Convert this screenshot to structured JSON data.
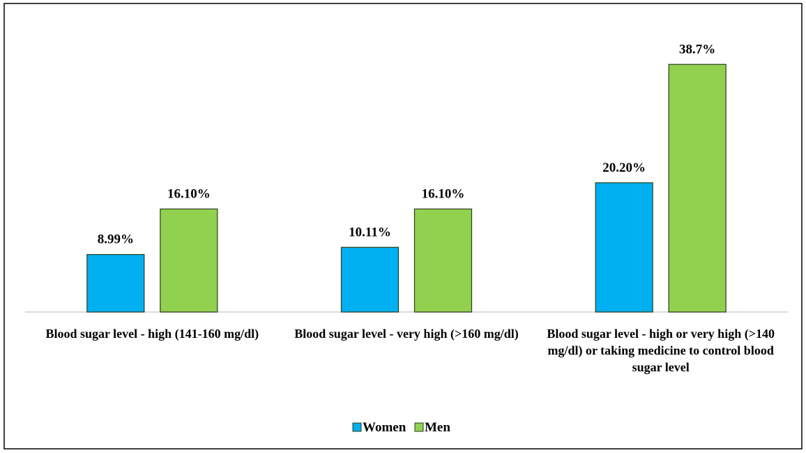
{
  "chart_data": {
    "type": "bar",
    "categories": [
      "Blood sugar level - high (141-160 mg/dl)",
      "Blood sugar level - very high (>160 mg/dl)",
      "Blood sugar level - high or very high (>140 mg/dl) or taking medicine to control blood sugar level"
    ],
    "series": [
      {
        "name": "Women",
        "color": "#00b0f0",
        "values": [
          8.99,
          10.11,
          20.2
        ],
        "value_labels": [
          "8.99%",
          "10.11%",
          "20.20%"
        ]
      },
      {
        "name": "Men",
        "color": "#92d050",
        "values": [
          16.1,
          16.1,
          38.7
        ],
        "value_labels": [
          "16.10%",
          "16.10%",
          "38.7%"
        ]
      }
    ],
    "ylim": [
      0,
      42
    ],
    "legend": "bottom"
  }
}
